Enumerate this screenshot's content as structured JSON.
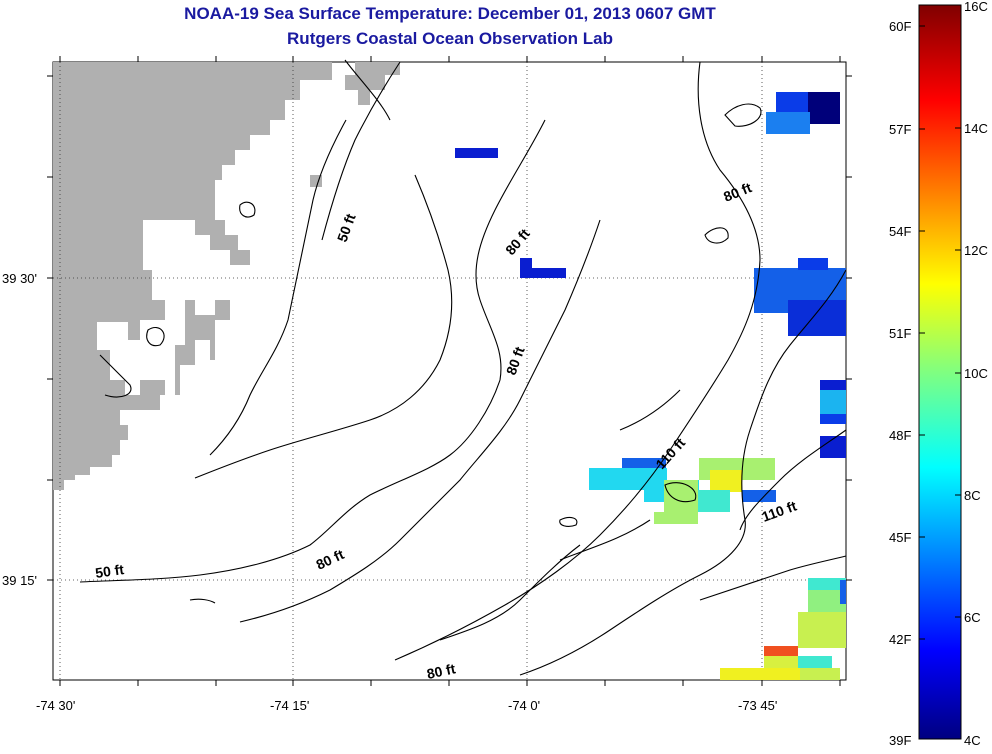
{
  "title": "NOAA-19 Sea Surface Temperature:  December 01, 2013 0607 GMT",
  "subtitle": "Rutgers Coastal Ocean Observation Lab",
  "map": {
    "x_ticks": [
      "-74 30'",
      "-74 15'",
      "-74 0'",
      "-73 45'"
    ],
    "y_ticks": [
      "39 30'",
      "39 15'"
    ],
    "contour_labels": [
      "50 ft",
      "50 ft",
      "80 ft",
      "80 ft",
      "80 ft",
      "80 ft",
      "80 ft",
      "110 ft",
      "110 ft"
    ]
  },
  "colorbar": {
    "fahrenheit_labels": [
      "60F",
      "57F",
      "54F",
      "51F",
      "48F",
      "45F",
      "42F",
      "39F"
    ],
    "celsius_labels": [
      "16C",
      "14C",
      "12C",
      "10C",
      "8C",
      "6C",
      "4C"
    ],
    "scale": "jet"
  }
}
